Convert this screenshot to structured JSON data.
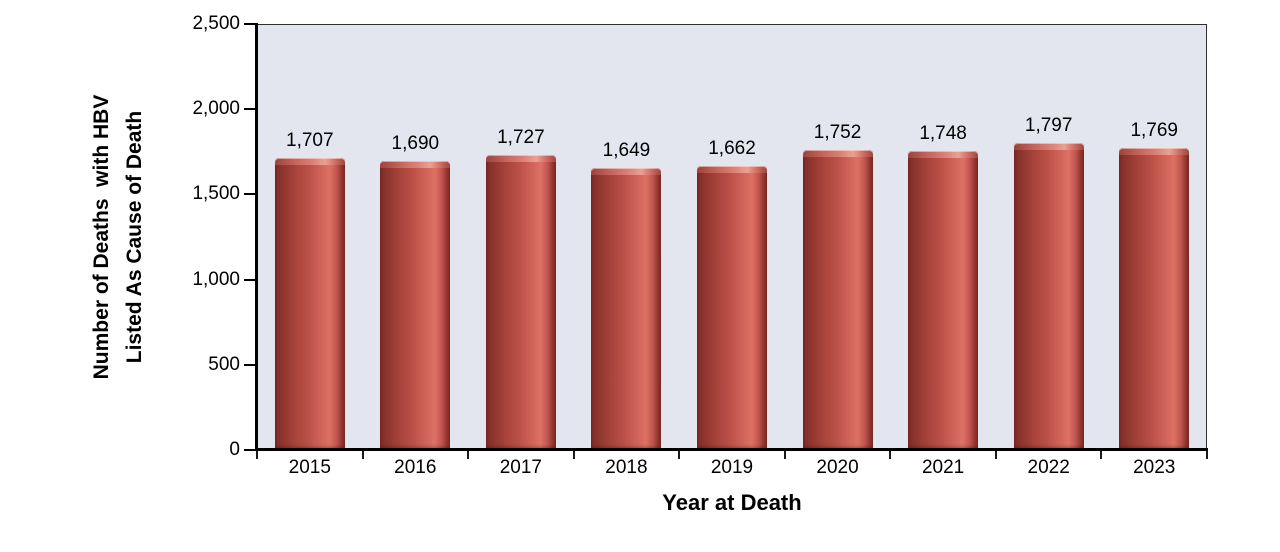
{
  "chart_data": {
    "type": "bar",
    "title": "",
    "categories": [
      "2015",
      "2016",
      "2017",
      "2018",
      "2019",
      "2020",
      "2021",
      "2022",
      "2023"
    ],
    "values": [
      1707,
      1690,
      1727,
      1649,
      1662,
      1752,
      1748,
      1797,
      1769
    ],
    "value_labels": [
      "1,707",
      "1,690",
      "1,727",
      "1,649",
      "1,662",
      "1,752",
      "1,748",
      "1,797",
      "1,769"
    ],
    "xlabel": "Year at Death",
    "ylabel_line1": "Number of Deaths  with HBV",
    "ylabel_line2": "Listed As Cause of Death",
    "ylim": [
      0,
      2500
    ],
    "yticks": [
      {
        "value": 0,
        "label": "0"
      },
      {
        "value": 500,
        "label": "500"
      },
      {
        "value": 1000,
        "label": "1,000"
      },
      {
        "value": 1500,
        "label": "1,500"
      },
      {
        "value": 2000,
        "label": "2,000"
      },
      {
        "value": 2500,
        "label": "2,500"
      }
    ],
    "grid": false,
    "legend": false,
    "colors": {
      "plot_background": "#E3E6EE",
      "bar_base": "#C0504D",
      "bar_edge_dark": "#7E2B27",
      "bar_highlight": "#DD7164",
      "axis": "#000000",
      "text": "#000000",
      "page_background": "#FFFFFF"
    }
  }
}
